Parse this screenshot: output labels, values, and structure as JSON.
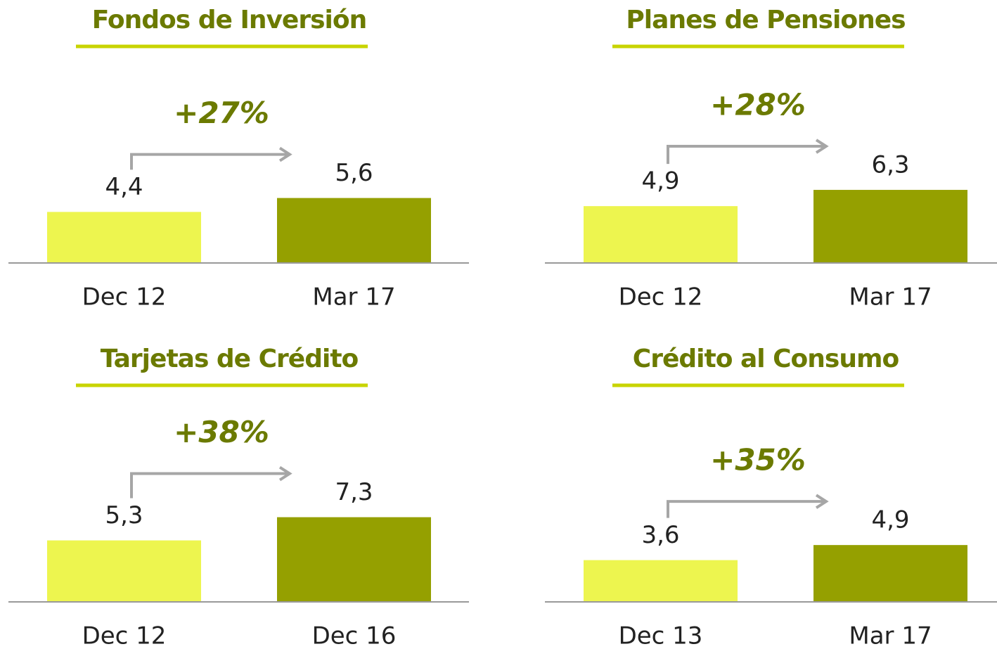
{
  "chart_data": [
    {
      "type": "bar",
      "title": "Fondos de Inversión",
      "annotation": "+27%",
      "categories": [
        "Dec 12",
        "Mar 17"
      ],
      "values": [
        4.4,
        5.6
      ],
      "value_labels": [
        "4,4",
        "5,6"
      ],
      "colors": [
        "#edf54f",
        "#95a000"
      ]
    },
    {
      "type": "bar",
      "title": "Planes de Pensiones",
      "annotation": "+28%",
      "categories": [
        "Dec 12",
        "Mar 17"
      ],
      "values": [
        4.9,
        6.3
      ],
      "value_labels": [
        "4,9",
        "6,3"
      ],
      "colors": [
        "#edf54f",
        "#95a000"
      ]
    },
    {
      "type": "bar",
      "title": "Tarjetas de Crédito",
      "annotation": "+38%",
      "categories": [
        "Dec 12",
        "Dec 16"
      ],
      "values": [
        5.3,
        7.3
      ],
      "value_labels": [
        "5,3",
        "7,3"
      ],
      "colors": [
        "#edf54f",
        "#95a000"
      ]
    },
    {
      "type": "bar",
      "title": "Crédito al Consumo",
      "annotation": "+35%",
      "categories": [
        "Dec 13",
        "Mar 17"
      ],
      "values": [
        3.6,
        4.9
      ],
      "value_labels": [
        "3,6",
        "4,9"
      ],
      "colors": [
        "#edf54f",
        "#95a000"
      ]
    }
  ]
}
